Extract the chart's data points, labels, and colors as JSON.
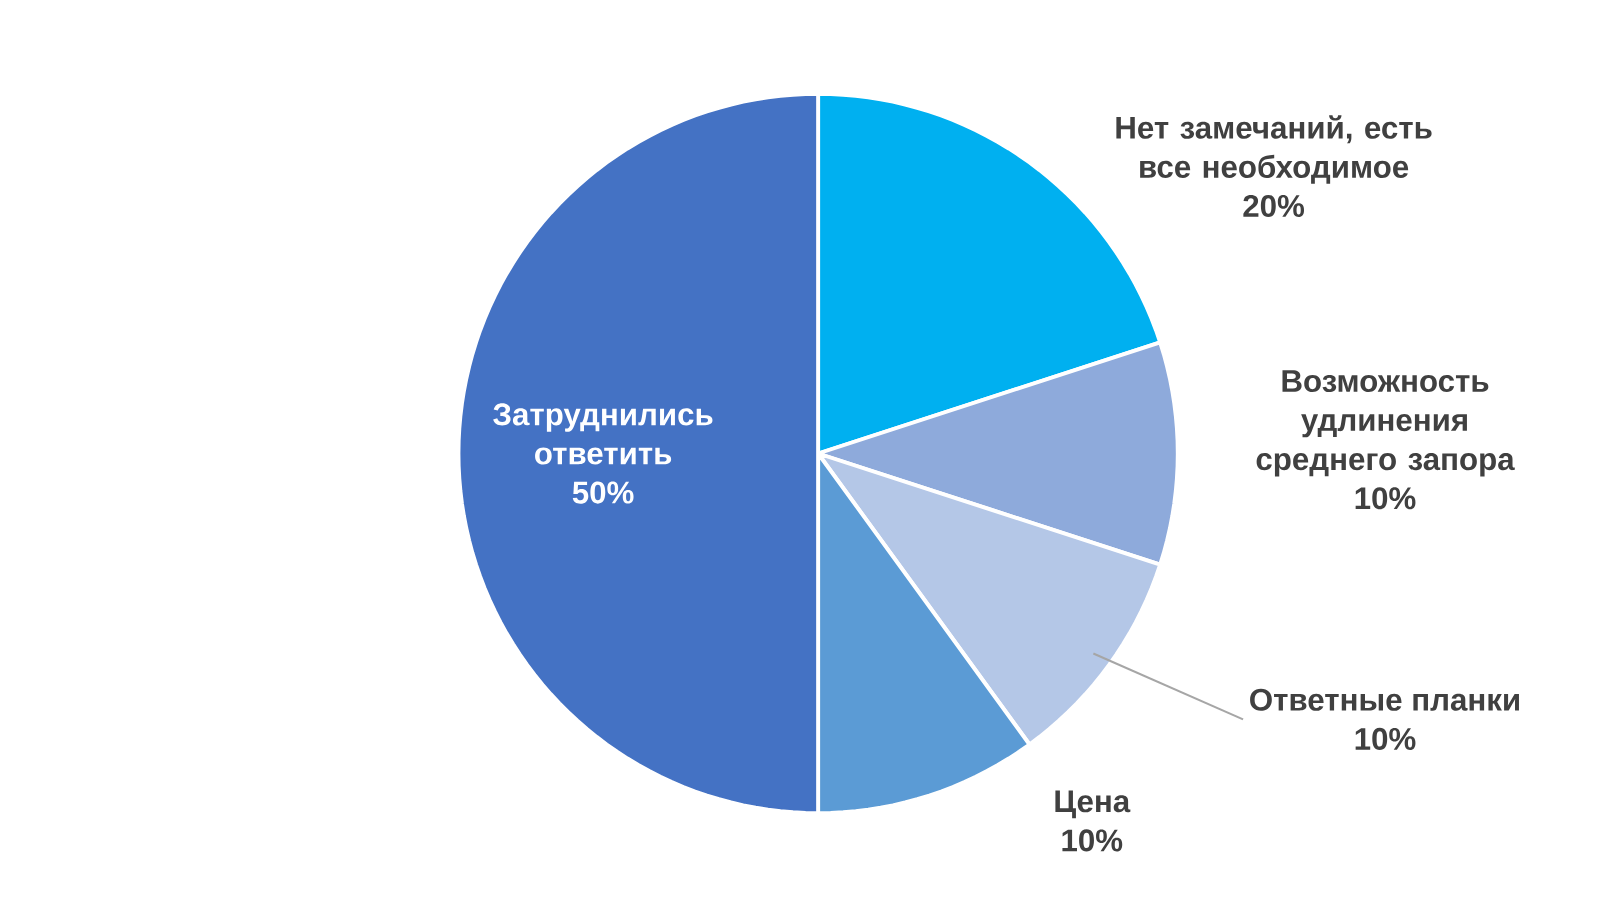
{
  "chart_data": {
    "type": "pie",
    "categories": [
      "Нет замечаний, есть все необходимое",
      "Возможность удлинения среднего запора",
      "Ответные планки",
      "Цена",
      "Затруднились ответить"
    ],
    "values": [
      20,
      10,
      10,
      10,
      50
    ],
    "colors": [
      "#00b0f0",
      "#8eaadb",
      "#b4c7e7",
      "#5b9bd5",
      "#4472c4"
    ],
    "value_labels": [
      "20%",
      "10%",
      "10%",
      "10%",
      "50%"
    ]
  }
}
